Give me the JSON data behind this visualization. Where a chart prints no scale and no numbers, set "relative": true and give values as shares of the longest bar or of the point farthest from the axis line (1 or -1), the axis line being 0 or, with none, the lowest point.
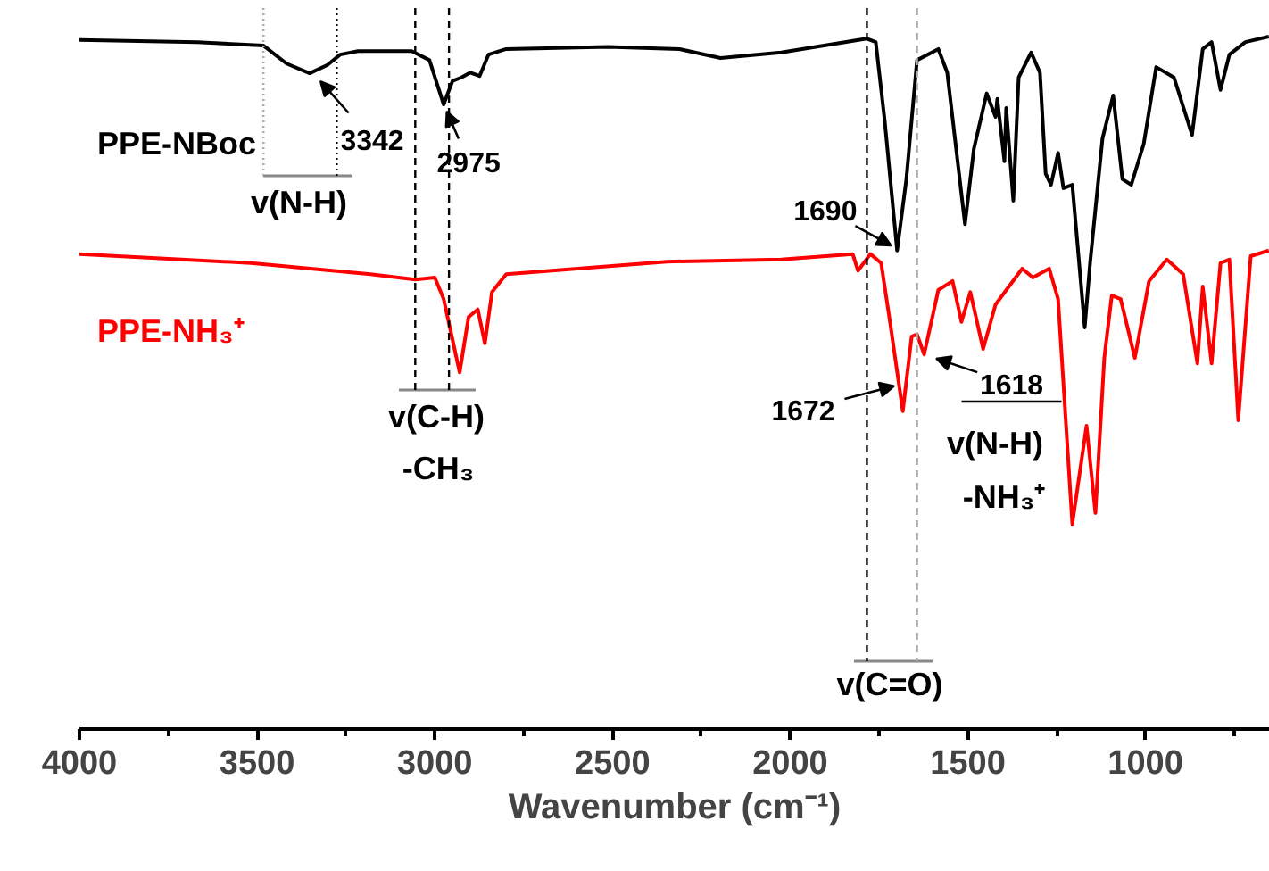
{
  "chart_data": {
    "type": "line",
    "relative": true,
    "xlabel": "Wavenumber (cm⁻¹)",
    "xlim": [
      4000,
      650
    ],
    "xticks": [
      4000,
      3500,
      3000,
      2500,
      2000,
      1500,
      1000
    ],
    "grid": false,
    "series": [
      {
        "name": "PPE-NBoc",
        "color": "#000000",
        "x": [
          4000,
          3668,
          3482,
          3417,
          3352,
          3302,
          3266,
          3216,
          3065,
          3015,
          2975,
          2950,
          2925,
          2900,
          2874,
          2849,
          2799,
          2513,
          2312,
          2196,
          2025,
          1784,
          1759,
          1734,
          1699,
          1673,
          1643,
          1583,
          1558,
          1508,
          1483,
          1447,
          1422,
          1417,
          1397,
          1392,
          1372,
          1357,
          1322,
          1297,
          1281,
          1266,
          1246,
          1231,
          1206,
          1171,
          1156,
          1121,
          1091,
          1065,
          1040,
          1005,
          970,
          920,
          869,
          839,
          814,
          789,
          764,
          719,
          653
        ],
        "values": [
          0.995,
          0.992,
          0.987,
          0.961,
          0.947,
          0.959,
          0.974,
          0.979,
          0.979,
          0.966,
          0.902,
          0.936,
          0.941,
          0.948,
          0.943,
          0.974,
          0.982,
          0.985,
          0.982,
          0.969,
          0.977,
          0.997,
          0.992,
          0.879,
          0.691,
          0.794,
          0.966,
          0.982,
          0.948,
          0.729,
          0.838,
          0.918,
          0.884,
          0.91,
          0.82,
          0.897,
          0.763,
          0.941,
          0.977,
          0.948,
          0.802,
          0.786,
          0.832,
          0.781,
          0.786,
          0.58,
          0.673,
          0.853,
          0.915,
          0.794,
          0.786,
          0.845,
          0.956,
          0.941,
          0.858,
          0.982,
          0.992,
          0.923,
          0.974,
          0.992,
          1.0
        ]
      },
      {
        "name": "PPE-NH₃⁺",
        "color": "#ff0000",
        "x": [
          4000,
          3518,
          3181,
          3055,
          3000,
          2975,
          2930,
          2905,
          2879,
          2859,
          2839,
          2799,
          2598,
          2347,
          2025,
          1824,
          1809,
          1774,
          1744,
          1719,
          1683,
          1658,
          1643,
          1623,
          1583,
          1543,
          1518,
          1493,
          1457,
          1422,
          1347,
          1317,
          1271,
          1246,
          1206,
          1166,
          1141,
          1116,
          1095,
          1070,
          1030,
          990,
          940,
          894,
          854,
          839,
          814,
          789,
          764,
          739,
          704,
          653
        ],
        "values": [
          0.686,
          0.673,
          0.657,
          0.649,
          0.652,
          0.621,
          0.515,
          0.595,
          0.606,
          0.557,
          0.631,
          0.657,
          0.665,
          0.675,
          0.678,
          0.686,
          0.662,
          0.686,
          0.673,
          0.588,
          0.459,
          0.567,
          0.57,
          0.541,
          0.634,
          0.647,
          0.588,
          0.631,
          0.549,
          0.613,
          0.665,
          0.652,
          0.665,
          0.621,
          0.296,
          0.438,
          0.312,
          0.536,
          0.626,
          0.621,
          0.536,
          0.647,
          0.678,
          0.657,
          0.528,
          0.639,
          0.528,
          0.673,
          0.678,
          0.446,
          0.683,
          0.691
        ]
      }
    ],
    "ref_lines": [
      {
        "axis": "x",
        "value": 3482,
        "color": "#aaaaaa",
        "line_style": "dotted"
      },
      {
        "axis": "x",
        "value": 3276,
        "color": "#000000",
        "line_style": "dotted"
      },
      {
        "axis": "x",
        "value": 3055,
        "color": "#000000",
        "line_style": "dashed"
      },
      {
        "axis": "x",
        "value": 2960,
        "color": "#000000",
        "line_style": "dashed"
      },
      {
        "axis": "x",
        "value": 1784,
        "color": "#000000",
        "line_style": "dashed"
      },
      {
        "axis": "x",
        "value": 1643,
        "color": "#aaaaaa",
        "line_style": "dashed"
      }
    ],
    "annotations": [
      {
        "text": "3342",
        "x": 3342,
        "y": 0.947
      },
      {
        "text": "2975",
        "x": 2975,
        "y": 0.902
      },
      {
        "text": "1690",
        "x": 1690,
        "y": 0.691
      },
      {
        "text": "1672",
        "x": 1672,
        "y": 0.5
      },
      {
        "text": "1618",
        "x": 1618,
        "y": 0.54
      },
      "v(N-H)",
      "v(C-H)",
      "-CH₃",
      "v(N-H)",
      "-NH₃⁺",
      "v(C=O)"
    ]
  }
}
